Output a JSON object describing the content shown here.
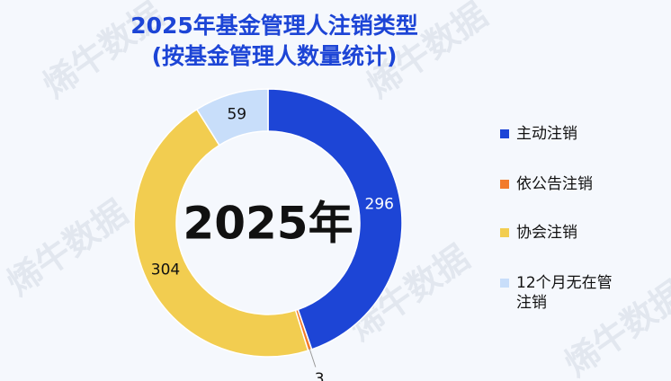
{
  "title_lines": [
    "2025年基金管理人注销类型",
    "(按基金管理人数量统计)"
  ],
  "center_label": "2025年",
  "colors": {
    "title": "#1d45d6",
    "background": "#f5f8fd"
  },
  "watermark": "烯牛数据 XINIU DATA",
  "chart_data": {
    "type": "pie",
    "donut": true,
    "categories": [
      "主动注销",
      "依公告注销",
      "协会注销",
      "12个月无在管注销"
    ],
    "values": [
      296,
      3,
      304,
      59
    ],
    "colors": [
      "#1d45d6",
      "#f27b2a",
      "#f2cd50",
      "#c8defa"
    ],
    "data_labels": [
      "296",
      "3",
      "304",
      "59"
    ],
    "legend_position": "right"
  },
  "legend": [
    {
      "label": "主动注销"
    },
    {
      "label": "依公告注销"
    },
    {
      "label": "协会注销"
    },
    {
      "label": "12个月无在管\n注销"
    }
  ]
}
